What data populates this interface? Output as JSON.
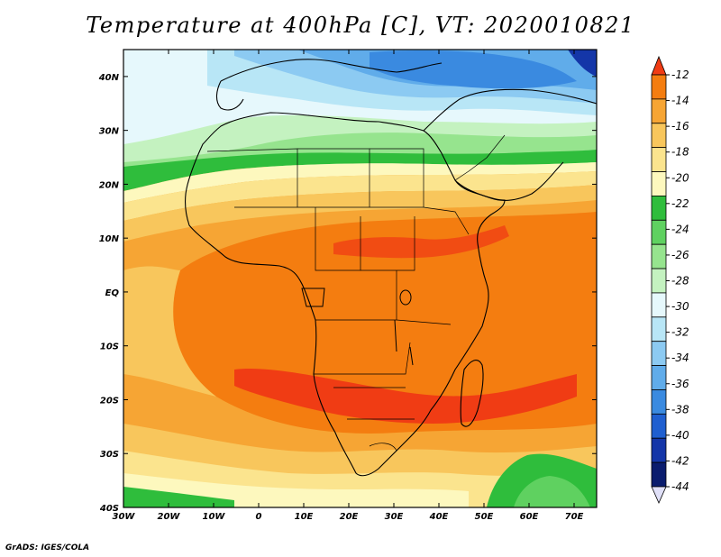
{
  "title": "Temperature at 400hPa [C], VT: 2020010821",
  "credit": "GrADS: IGES/COLA",
  "map": {
    "lat_labels": [
      "40N",
      "30N",
      "20N",
      "10N",
      "EQ",
      "10S",
      "20S",
      "30S",
      "40S"
    ],
    "lat_values": [
      40,
      30,
      20,
      10,
      0,
      -10,
      -20,
      -30,
      -40
    ],
    "lon_labels": [
      "30W",
      "20W",
      "10W",
      "0",
      "10E",
      "20E",
      "30E",
      "40E",
      "50E",
      "60E",
      "70E"
    ],
    "lon_values": [
      -30,
      -20,
      -10,
      0,
      10,
      20,
      30,
      40,
      50,
      60,
      70
    ],
    "extent": {
      "lon_min": -30,
      "lon_max": 75,
      "lat_min": -40,
      "lat_max": 45
    }
  },
  "colorbar": {
    "labels": [
      "-12",
      "-14",
      "-16",
      "-18",
      "-20",
      "-22",
      "-24",
      "-26",
      "-28",
      "-30",
      "-32",
      "-34",
      "-36",
      "-38",
      "-40",
      "-42",
      "-44"
    ],
    "colors_top_to_bottom": [
      "#f03c14",
      "#f47d10",
      "#f6a534",
      "#f8c65c",
      "#fbe48e",
      "#fdf8be",
      "#2fbd3c",
      "#5fd160",
      "#96e48e",
      "#c4f2c0",
      "#e6f8fc",
      "#b8e6f6",
      "#8ccaf2",
      "#60acea",
      "#3a8ae0",
      "#1f5fd0",
      "#1436a8",
      "#0a1c6e",
      "#e0e0f8"
    ]
  },
  "chart_data": {
    "type": "heatmap",
    "title": "Temperature at 400hPa [C], VT: 2020010821",
    "variable": "Temperature",
    "units": "C",
    "level": "400hPa",
    "valid_time": "2020010821",
    "x_ticks": [
      "30W",
      "20W",
      "10W",
      "0",
      "10E",
      "20E",
      "30E",
      "40E",
      "50E",
      "60E",
      "70E"
    ],
    "y_ticks": [
      "40N",
      "30N",
      "20N",
      "10N",
      "EQ",
      "10S",
      "20S",
      "30S",
      "40S"
    ],
    "xlim": [
      -30,
      75
    ],
    "ylim": [
      -40,
      45
    ],
    "colorbar_levels": [
      -12,
      -14,
      -16,
      -18,
      -20,
      -22,
      -24,
      -26,
      -28,
      -30,
      -32,
      -34,
      -36,
      -38,
      -40,
      -42,
      -44
    ],
    "zones": [
      {
        "region": "far north (Mediterranean, ~38-45N)",
        "approx_temp_c": -32
      },
      {
        "region": "North Africa 30-35N",
        "approx_temp_c": -28
      },
      {
        "region": "Sahara 24-28N band",
        "approx_temp_c": -24
      },
      {
        "region": "tropics 20N-20S",
        "approx_temp_c": -16
      },
      {
        "region": "southern Africa 20-25S band",
        "approx_temp_c": -14
      },
      {
        "region": "30-38S",
        "approx_temp_c": -20
      },
      {
        "region": "Indian Ocean near 35S 60E",
        "approx_temp_c": -24
      }
    ]
  }
}
